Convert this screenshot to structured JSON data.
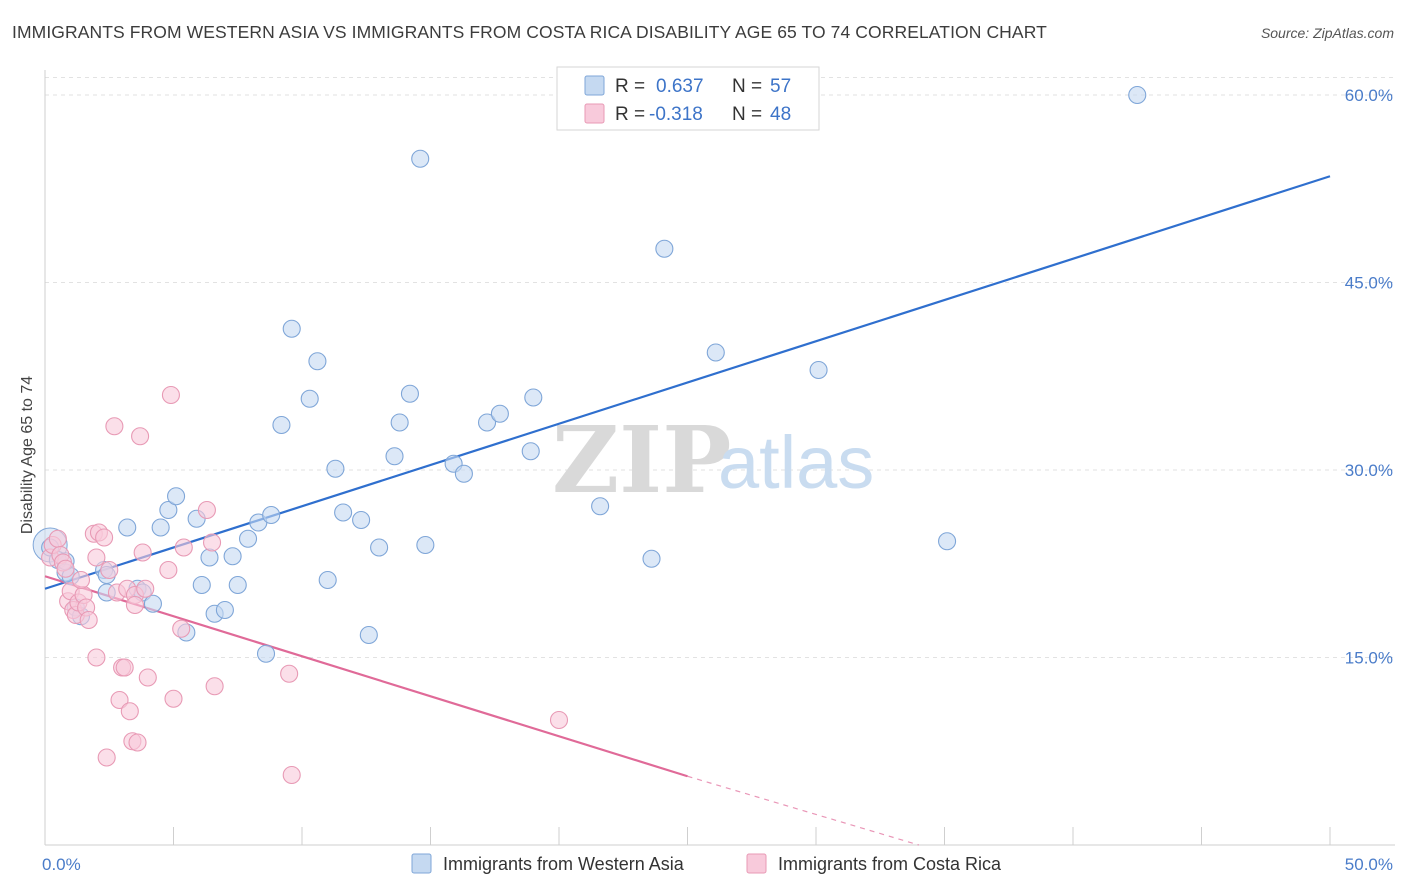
{
  "title": "IMMIGRANTS FROM WESTERN ASIA VS IMMIGRANTS FROM COSTA RICA DISABILITY AGE 65 TO 74 CORRELATION CHART",
  "source": "Source: ZipAtlas.com",
  "watermark": {
    "zip": "ZIP",
    "atlas": "atlas"
  },
  "colors": {
    "blue_fill": "#c5d9f1",
    "blue_stroke": "#7fa6d8",
    "blue_line": "#2f6fce",
    "pink_fill": "#f8cadb",
    "pink_stroke": "#e89ab5",
    "pink_line": "#e06a98",
    "grid": "#e2e2e2",
    "tick_text": "#4a7cc9"
  },
  "legend": {
    "rows": [
      {
        "r_label": "R =",
        "r_value": "0.637",
        "n_label": "N =",
        "n_value": "57"
      },
      {
        "r_label": "R =",
        "r_value": "-0.318",
        "n_label": "N =",
        "n_value": "48"
      }
    ]
  },
  "chart_data": {
    "type": "scatter",
    "xlabel": "",
    "ylabel": "Disability Age 65 to 74",
    "xlim": [
      0,
      50
    ],
    "ylim": [
      0,
      62
    ],
    "x_tick_labels": [
      "0.0%",
      "50.0%"
    ],
    "y_ticks": [
      15,
      30,
      45,
      60
    ],
    "y_tick_labels": [
      "15.0%",
      "30.0%",
      "45.0%",
      "60.0%"
    ],
    "grid": "horizontal dashed",
    "series": [
      {
        "name": "Immigrants from Western Asia",
        "color": "blue",
        "trend": {
          "x": [
            0,
            50
          ],
          "y": [
            20.5,
            53.5
          ]
        },
        "points": [
          [
            0.2,
            23.8
          ],
          [
            0.5,
            22.8
          ],
          [
            0.8,
            21.8
          ],
          [
            1.0,
            21.5
          ],
          [
            1.2,
            19.0
          ],
          [
            1.4,
            18.3
          ],
          [
            2.3,
            22.0
          ],
          [
            2.4,
            21.6
          ],
          [
            2.4,
            20.2
          ],
          [
            3.2,
            25.4
          ],
          [
            3.6,
            20.5
          ],
          [
            3.8,
            20.2
          ],
          [
            4.2,
            19.3
          ],
          [
            4.5,
            25.4
          ],
          [
            4.8,
            26.8
          ],
          [
            5.1,
            27.9
          ],
          [
            5.5,
            17.0
          ],
          [
            5.9,
            26.1
          ],
          [
            6.1,
            20.8
          ],
          [
            6.4,
            23.0
          ],
          [
            6.6,
            18.5
          ],
          [
            7.0,
            18.8
          ],
          [
            7.3,
            23.1
          ],
          [
            7.5,
            20.8
          ],
          [
            7.9,
            24.5
          ],
          [
            8.3,
            25.8
          ],
          [
            8.6,
            15.3
          ],
          [
            8.8,
            26.4
          ],
          [
            9.2,
            33.6
          ],
          [
            9.6,
            41.3
          ],
          [
            10.3,
            35.7
          ],
          [
            10.6,
            38.7
          ],
          [
            11.0,
            21.2
          ],
          [
            11.3,
            30.1
          ],
          [
            11.6,
            26.6
          ],
          [
            12.3,
            26.0
          ],
          [
            12.6,
            16.8
          ],
          [
            13.0,
            23.8
          ],
          [
            13.6,
            31.1
          ],
          [
            13.8,
            33.8
          ],
          [
            14.2,
            36.1
          ],
          [
            14.6,
            54.9
          ],
          [
            14.8,
            24.0
          ],
          [
            15.9,
            30.5
          ],
          [
            16.3,
            29.7
          ],
          [
            17.2,
            33.8
          ],
          [
            17.7,
            34.5
          ],
          [
            18.9,
            31.5
          ],
          [
            19.0,
            35.8
          ],
          [
            21.6,
            27.1
          ],
          [
            23.6,
            22.9
          ],
          [
            24.1,
            47.7
          ],
          [
            26.1,
            39.4
          ],
          [
            30.1,
            38.0
          ],
          [
            35.1,
            24.3
          ],
          [
            42.5,
            60.0
          ],
          [
            0.8,
            22.7
          ]
        ]
      },
      {
        "name": "Immigrants from Costa Rica",
        "color": "pink",
        "trend": {
          "x": [
            0,
            25
          ],
          "y": [
            21.5,
            5.5
          ],
          "dashed_extension": {
            "x": [
              25,
              34
            ],
            "y": [
              5.5,
              0
            ]
          }
        },
        "points": [
          [
            0.2,
            23.0
          ],
          [
            0.3,
            24.0
          ],
          [
            0.5,
            24.5
          ],
          [
            0.6,
            23.2
          ],
          [
            0.7,
            22.6
          ],
          [
            0.8,
            22.1
          ],
          [
            0.9,
            19.5
          ],
          [
            1.0,
            20.3
          ],
          [
            1.1,
            18.8
          ],
          [
            1.2,
            18.4
          ],
          [
            1.3,
            19.4
          ],
          [
            1.5,
            20.0
          ],
          [
            1.6,
            19.0
          ],
          [
            1.7,
            18.0
          ],
          [
            1.9,
            24.9
          ],
          [
            2.0,
            15.0
          ],
          [
            2.1,
            25.0
          ],
          [
            2.3,
            24.6
          ],
          [
            2.4,
            7.0
          ],
          [
            2.5,
            22.0
          ],
          [
            2.7,
            33.5
          ],
          [
            2.8,
            20.2
          ],
          [
            2.9,
            11.6
          ],
          [
            3.0,
            14.2
          ],
          [
            3.1,
            14.2
          ],
          [
            3.2,
            20.5
          ],
          [
            3.3,
            10.7
          ],
          [
            3.4,
            8.3
          ],
          [
            3.5,
            20.0
          ],
          [
            3.6,
            8.2
          ],
          [
            3.7,
            32.7
          ],
          [
            3.8,
            23.4
          ],
          [
            3.9,
            20.5
          ],
          [
            4.0,
            13.4
          ],
          [
            4.8,
            22.0
          ],
          [
            4.9,
            36.0
          ],
          [
            5.0,
            11.7
          ],
          [
            5.3,
            17.3
          ],
          [
            5.4,
            23.8
          ],
          [
            6.3,
            26.8
          ],
          [
            6.5,
            24.2
          ],
          [
            6.6,
            12.7
          ],
          [
            9.5,
            13.7
          ],
          [
            9.6,
            5.6
          ],
          [
            2.0,
            23.0
          ],
          [
            1.4,
            21.2
          ],
          [
            3.5,
            19.2
          ],
          [
            20.0,
            10.0
          ]
        ]
      }
    ]
  },
  "bottom_legend": {
    "items": [
      {
        "label": "Immigrants from Western Asia"
      },
      {
        "label": "Immigrants from Costa Rica"
      }
    ]
  }
}
